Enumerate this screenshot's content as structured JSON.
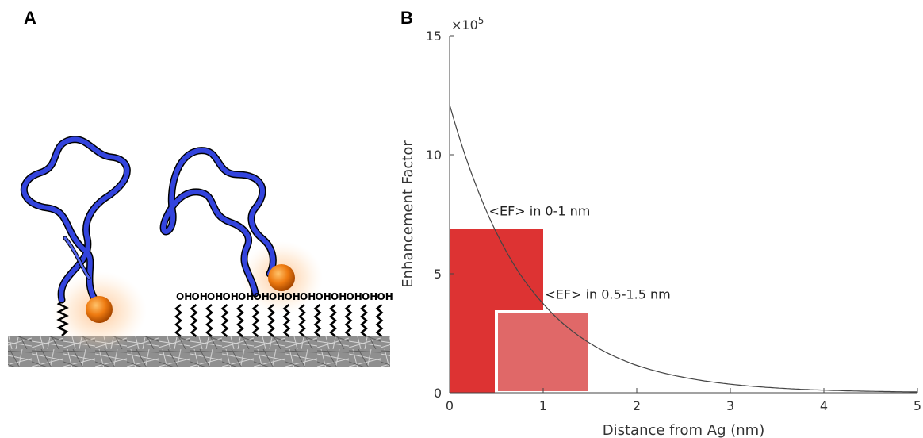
{
  "panels": {
    "left_label": "A",
    "right_label": "B"
  },
  "schematic": {
    "hydroxyl_terminals": [
      "OH",
      "OH",
      "OH",
      "OH",
      "OH",
      "OH",
      "OH",
      "OH",
      "OH",
      "OH",
      "OH",
      "OH",
      "OH",
      "OH"
    ],
    "colors": {
      "dna_strand": "#3344dd",
      "fluorophore": "#ee7a10",
      "substrate": "#999999",
      "linker": "#000000"
    }
  },
  "chart_data": {
    "type": "line",
    "title": "",
    "xlabel": "Distance from Ag (nm)",
    "ylabel": "Enhancement Factor",
    "y_multiplier": "×10",
    "y_multiplier_exp": "5",
    "xlim": [
      0,
      5
    ],
    "ylim": [
      0,
      15
    ],
    "x_ticks": [
      "0",
      "1",
      "2",
      "3",
      "4",
      "5"
    ],
    "y_ticks": [
      "0",
      "5",
      "10",
      "15"
    ],
    "y_units_scale": 100000,
    "series": [
      {
        "x": [
          0,
          0.25,
          0.5,
          0.75,
          1.0,
          1.25,
          1.5,
          1.75,
          2.0,
          2.5,
          3.0,
          3.5,
          4.0,
          4.5,
          5.0
        ],
        "values": [
          12.1,
          9.05,
          6.73,
          5.0,
          3.74,
          2.78,
          2.08,
          1.55,
          1.15,
          0.65,
          0.36,
          0.2,
          0.11,
          0.06,
          0.035
        ],
        "color": "#444444"
      }
    ],
    "bars": [
      {
        "label": "<EF> in 0-1 nm",
        "x_start": 0,
        "x_end": 1.0,
        "value": 6.9,
        "color": "#dd3333"
      },
      {
        "label": "<EF> in 0.5-1.5 nm",
        "x_start": 0.5,
        "x_end": 1.5,
        "value": 3.4,
        "color": "#e06868"
      }
    ],
    "grid": false,
    "legend": "none"
  }
}
